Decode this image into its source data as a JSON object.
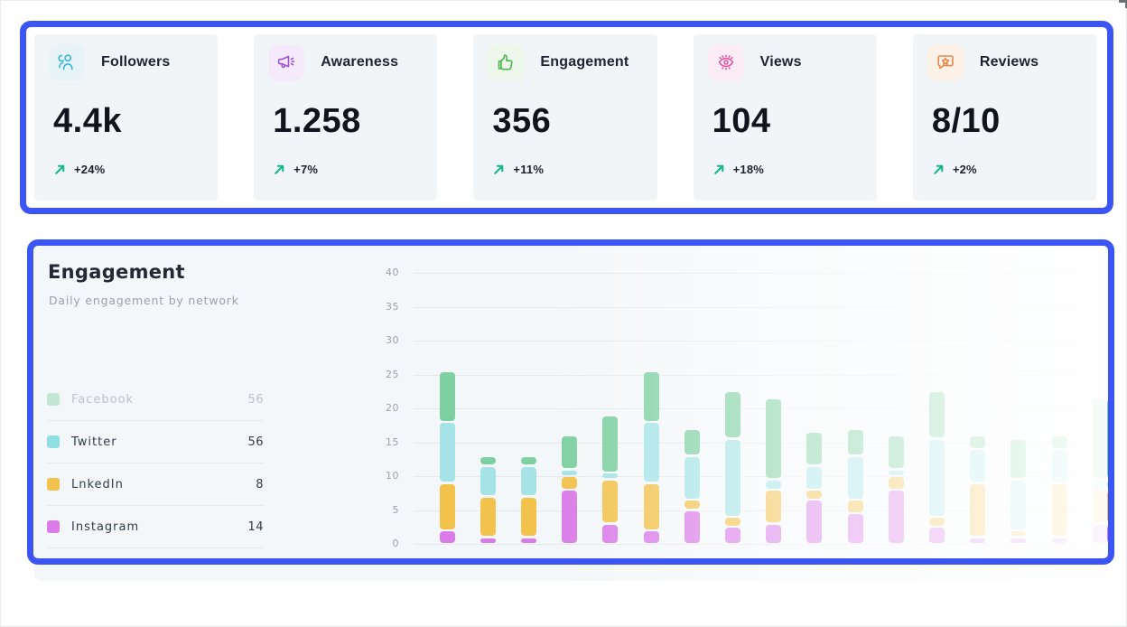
{
  "highlight_color": "#3c55f6",
  "stats": {
    "trend_color": "#14b789",
    "cards": [
      {
        "label": "Followers",
        "value": "4.4k",
        "change": "+24%",
        "icon": "users-icon",
        "icon_color": "#35b8d8",
        "tile_bg": "#e8f3f7"
      },
      {
        "label": "Awareness",
        "value": "1.258",
        "change": "+7%",
        "icon": "megaphone-icon",
        "icon_color": "#9b51d0",
        "tile_bg": "#f4eafb"
      },
      {
        "label": "Engagement",
        "value": "356",
        "change": "+11%",
        "icon": "thumbs-up-icon",
        "icon_color": "#4fb54d",
        "tile_bg": "#eef7ec"
      },
      {
        "label": "Views",
        "value": "104",
        "change": "+18%",
        "icon": "eye-icon",
        "icon_color": "#e5519e",
        "tile_bg": "#fcecf5"
      },
      {
        "label": "Reviews",
        "value": "8/10",
        "change": "+2%",
        "icon": "review-star-icon",
        "icon_color": "#e68a4e",
        "tile_bg": "#fdf2e8"
      }
    ]
  },
  "chart_card": {
    "title": "Engagement",
    "subtitle": "Daily engagement by network",
    "legend": [
      {
        "label": "Facebook",
        "value": "56",
        "color": "#7ed0a2",
        "disabled": true
      },
      {
        "label": "Twitter",
        "value": "56",
        "color": "#8fdfe2",
        "disabled": false
      },
      {
        "label": "LnkedIn",
        "value": "8",
        "color": "#f2c24d",
        "disabled": false
      },
      {
        "label": "Instagram",
        "value": "14",
        "color": "#d97ce8",
        "disabled": false
      }
    ]
  },
  "chart_data": {
    "type": "bar",
    "stacked": true,
    "title": "Engagement",
    "subtitle": "Daily engagement by network",
    "grid": true,
    "legend_position": "left",
    "ylim": [
      0,
      40
    ],
    "yticks": [
      0,
      5,
      10,
      15,
      20,
      25,
      30,
      35,
      40
    ],
    "bar_count": 17,
    "stack_order_bottom_to_top": [
      "Instagram",
      "LnkedIn",
      "Twitter",
      "Facebook"
    ],
    "series": [
      {
        "name": "Instagram",
        "color": "#d97ce8",
        "values": [
          2,
          1,
          1,
          8,
          3,
          2,
          5,
          2.5,
          3,
          6.5,
          4.5,
          8,
          2.5,
          1,
          1,
          1,
          3
        ]
      },
      {
        "name": "LnkedIn",
        "color": "#f2c24d",
        "values": [
          7,
          6,
          6,
          2,
          6.5,
          7,
          1.5,
          1.5,
          5,
          1.5,
          2,
          2,
          1.5,
          8,
          1,
          8,
          5
        ]
      },
      {
        "name": "Twitter",
        "color": "#a5e3e6",
        "values": [
          9,
          4.5,
          4.5,
          1,
          1,
          9,
          6.5,
          11.5,
          1.5,
          3.5,
          6.5,
          1,
          11.5,
          5,
          7.5,
          5,
          1.5
        ]
      },
      {
        "name": "Facebook",
        "color": "#7ed0a2",
        "values": [
          7.5,
          1.5,
          1.5,
          5,
          8.5,
          7.5,
          4,
          7,
          12,
          5,
          4,
          5,
          7,
          2,
          6,
          2,
          12
        ]
      }
    ]
  }
}
